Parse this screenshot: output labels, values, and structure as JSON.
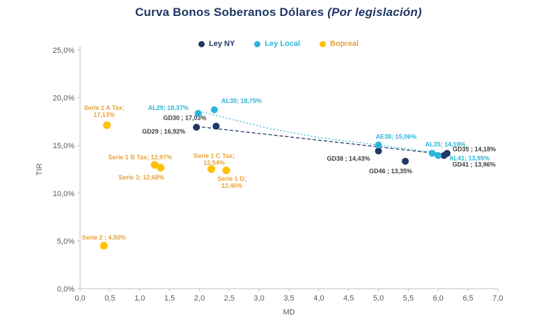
{
  "title": {
    "main": "Curva Bonos Soberanos Dólares",
    "subtitle": "(Por legislación)"
  },
  "colors": {
    "title": "#1F3864",
    "axis_text": "#595959",
    "axis_line": "#BFBFBF"
  },
  "legend": [
    {
      "label": "Ley NY",
      "color": "#1F3864",
      "text_color": "#1F3864"
    },
    {
      "label": "Ley Local",
      "color": "#2FB4D9",
      "text_color": "#2FB4D9"
    },
    {
      "label": "Bopreal",
      "color": "#FFC000",
      "text_color": "#E8A33D"
    }
  ],
  "chart_data": {
    "type": "scatter",
    "title": "Curva Bonos Soberanos Dólares (Por legislación)",
    "xlabel": "MD",
    "ylabel": "TIR",
    "xlim": [
      0,
      7
    ],
    "ylim": [
      0,
      25
    ],
    "x_ticks": [
      "0,0",
      "0,5",
      "1,0",
      "1,5",
      "2,0",
      "2,5",
      "3,0",
      "3,5",
      "4,0",
      "4,5",
      "5,0",
      "5,5",
      "6,0",
      "6,5",
      "7,0"
    ],
    "y_ticks": [
      "0,0%",
      "5,0%",
      "10,0%",
      "15,0%",
      "20,0%",
      "25,0%"
    ],
    "grid": false,
    "legend_position": "top",
    "series": [
      {
        "name": "Ley NY",
        "color": "#1F3864",
        "label_color": "#404040",
        "r": 5,
        "points": [
          {
            "id": "gd29",
            "x": 1.95,
            "y": 16.92,
            "label_lines": [
              "GD29 ; 16,92%"
            ],
            "anchor": "end",
            "dx": -16,
            "dy": 9
          },
          {
            "id": "gd30",
            "x": 2.28,
            "y": 17.03,
            "label_lines": [
              "GD30 ; 17,03%"
            ],
            "anchor": "end",
            "dx": -14,
            "dy": -9
          },
          {
            "id": "gd38",
            "x": 5.0,
            "y": 14.43,
            "label_lines": [
              "GD38 ; 14,43%"
            ],
            "anchor": "end",
            "dx": -12,
            "dy": 14
          },
          {
            "id": "gd46",
            "x": 5.45,
            "y": 13.35,
            "label_lines": [
              "GD46 ; 13,35%"
            ],
            "anchor": "end",
            "dx": 10,
            "dy": 17
          },
          {
            "id": "gd35",
            "x": 6.15,
            "y": 14.18,
            "label_lines": [
              "GD35 ; 14,18%"
            ],
            "anchor": "start",
            "dx": 8,
            "dy": -3
          },
          {
            "id": "gd41",
            "x": 6.1,
            "y": 13.96,
            "label_lines": [
              "GD41 ; 13,96%"
            ],
            "anchor": "start",
            "dx": 12,
            "dy": 16
          }
        ]
      },
      {
        "name": "Ley Local",
        "color": "#2FB4D9",
        "label_color": "#2FB4D9",
        "r": 5,
        "points": [
          {
            "id": "al29",
            "x": 1.98,
            "y": 18.37,
            "label_lines": [
              "AL29; 18,37%"
            ],
            "anchor": "end",
            "dx": -14,
            "dy": -5
          },
          {
            "id": "al30",
            "x": 2.25,
            "y": 18.75,
            "label_lines": [
              "AL30; 18,75%"
            ],
            "anchor": "start",
            "dx": 10,
            "dy": -10
          },
          {
            "id": "ae38",
            "x": 5.0,
            "y": 15.06,
            "label_lines": [
              "AE38; 15,06%"
            ],
            "anchor": "start",
            "dx": -4,
            "dy": -9
          },
          {
            "id": "al35",
            "x": 5.9,
            "y": 14.19,
            "label_lines": [
              "AL35; 14,19%"
            ],
            "anchor": "start",
            "dx": -10,
            "dy": -10
          },
          {
            "id": "al41",
            "x": 6.0,
            "y": 13.95,
            "label_lines": [
              "AL41; 13,95%"
            ],
            "anchor": "start",
            "dx": 16,
            "dy": 7
          }
        ]
      },
      {
        "name": "Bopreal",
        "color": "#FFC000",
        "label_color": "#E8A33D",
        "r": 5.5,
        "points": [
          {
            "id": "serie-1-a-tax",
            "x": 0.45,
            "y": 17.13,
            "label_lines": [
              "Serie 1 A Tax;",
              "17,13%"
            ],
            "anchor": "middle",
            "dx": -4,
            "dy": -22
          },
          {
            "id": "serie-1-b-tax",
            "x": 1.25,
            "y": 12.97,
            "label_lines": [
              "Serie 1 B Tax; 12,97%"
            ],
            "anchor": "end",
            "dx": 25,
            "dy": -8
          },
          {
            "id": "serie-3",
            "x": 1.35,
            "y": 12.68,
            "label_lines": [
              "Serie 3; 12,68%"
            ],
            "anchor": "end",
            "dx": 5,
            "dy": 17
          },
          {
            "id": "serie-1-c-tax",
            "x": 2.2,
            "y": 12.54,
            "label_lines": [
              "Serie 1 C Tax;",
              "12,54%"
            ],
            "anchor": "middle",
            "dx": 4,
            "dy": -16
          },
          {
            "id": "serie-1-d",
            "x": 2.45,
            "y": 12.4,
            "label_lines": [
              "Serie 1 D;",
              "12,40%"
            ],
            "anchor": "middle",
            "dx": 8,
            "dy": 15
          },
          {
            "id": "serie-2",
            "x": 0.4,
            "y": 4.5,
            "label_lines": [
              "Serie 2 ; 4,50%"
            ],
            "anchor": "middle",
            "dx": 0,
            "dy": -9
          }
        ]
      }
    ],
    "trendlines": [
      {
        "series": "ley-ny",
        "color": "#1F3864",
        "dash": "5 3",
        "points": [
          [
            1.95,
            17.0
          ],
          [
            6.15,
            14.05
          ]
        ]
      },
      {
        "series": "ley-local",
        "color": "#2FB4D9",
        "dash": "2 3",
        "points": [
          [
            2.05,
            18.5
          ],
          [
            2.6,
            17.65
          ],
          [
            3.2,
            16.75
          ],
          [
            4.0,
            15.85
          ],
          [
            5.0,
            15.05
          ],
          [
            6.1,
            14.15
          ]
        ]
      }
    ]
  }
}
